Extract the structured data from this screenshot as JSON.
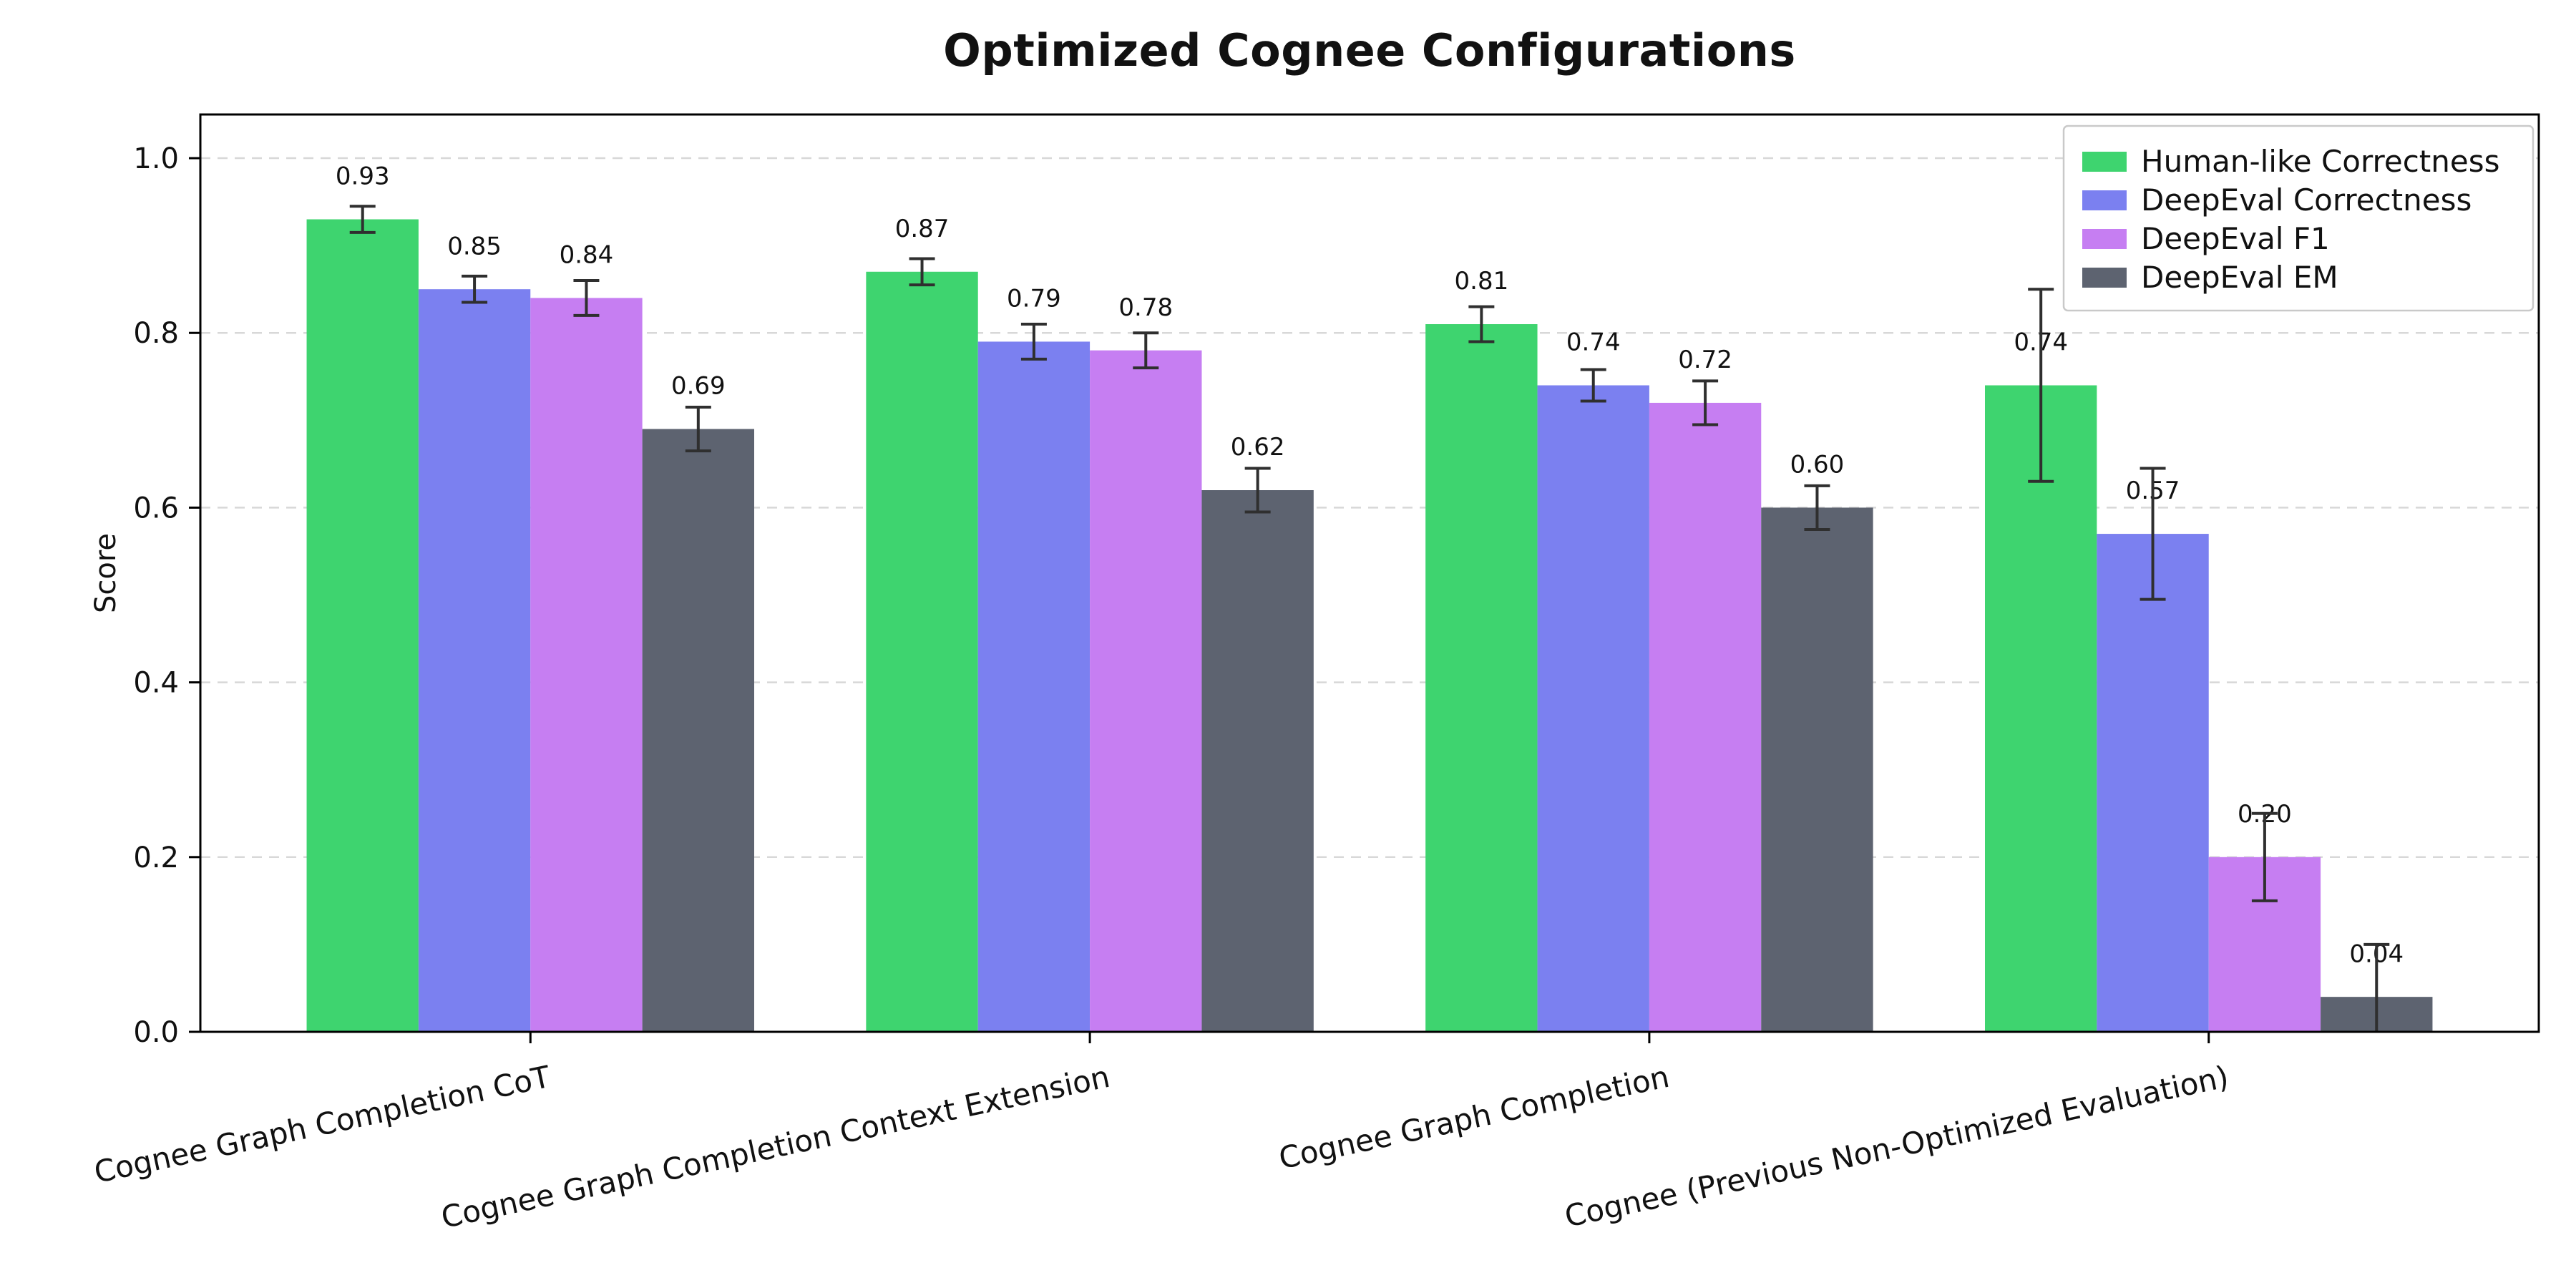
{
  "chart_data": {
    "type": "bar",
    "title": "Optimized Cognee Configurations",
    "xlabel": "",
    "ylabel": "Score",
    "ylim": [
      0,
      1.05
    ],
    "yticks": [
      "0.0",
      "0.2",
      "0.4",
      "0.6",
      "0.8",
      "1.0"
    ],
    "grid": "horizontal dashed",
    "legend_position": "upper right",
    "bar_value_labels": true,
    "error_bars": true,
    "colors": {
      "error_bar": "#2f2f2f",
      "grid": "#d8d8d8",
      "axis": "#000000",
      "text": "#111111",
      "legend_border": "#c9c9c9",
      "background": "#ffffff"
    },
    "categories": [
      "Cognee Graph Completion CoT",
      "Cognee Graph Completion Context Extension",
      "Cognee Graph Completion",
      "Cognee (Previous Non-Optimized Evaluation)"
    ],
    "series": [
      {
        "name": "Human-like Correctness",
        "color": "#3ed46f",
        "values": [
          0.93,
          0.87,
          0.81,
          0.74
        ],
        "errors": [
          0.015,
          0.015,
          0.02,
          0.11
        ]
      },
      {
        "name": "DeepEval Correctness",
        "color": "#7b80f0",
        "values": [
          0.85,
          0.79,
          0.74,
          0.57
        ],
        "errors": [
          0.015,
          0.02,
          0.018,
          0.075
        ]
      },
      {
        "name": "DeepEval F1",
        "color": "#c67ef2",
        "values": [
          0.84,
          0.78,
          0.72,
          0.2
        ],
        "errors": [
          0.02,
          0.02,
          0.025,
          0.05
        ]
      },
      {
        "name": "DeepEval EM",
        "color": "#5d6370",
        "values": [
          0.69,
          0.62,
          0.6,
          0.04
        ],
        "errors": [
          0.025,
          0.025,
          0.025,
          0.06
        ]
      }
    ]
  }
}
